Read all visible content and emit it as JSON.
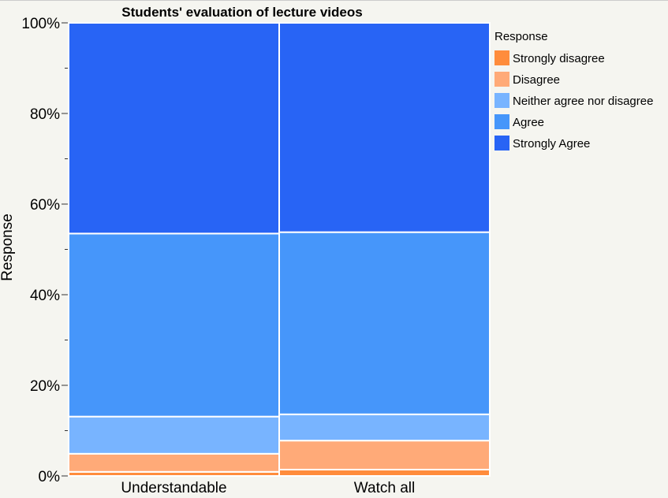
{
  "chart_data": {
    "type": "bar",
    "stacked": true,
    "title": "Students' evaluation of lecture videos",
    "xlabel": "",
    "ylabel": "Response",
    "ylim": [
      0,
      100
    ],
    "yticks": [
      "0%",
      "20%",
      "40%",
      "60%",
      "80%",
      "100%"
    ],
    "ytick_values": [
      0,
      20,
      40,
      60,
      80,
      100
    ],
    "categories": [
      "Understandable",
      "Watch all"
    ],
    "legend_title": "Response",
    "legend_position": "right",
    "series": [
      {
        "name": "Strongly disagree",
        "color": "#ff8c3c",
        "values": [
          0.9,
          1.4
        ]
      },
      {
        "name": "Disagree",
        "color": "#ffaa78",
        "values": [
          4.0,
          6.4
        ]
      },
      {
        "name": "Neither agree nor disagree",
        "color": "#78b4ff",
        "values": [
          8.2,
          5.8
        ]
      },
      {
        "name": "Agree",
        "color": "#4696fa",
        "values": [
          40.4,
          40.2
        ]
      },
      {
        "name": "Strongly Agree",
        "color": "#2864f5",
        "values": [
          46.5,
          46.2
        ]
      }
    ]
  }
}
